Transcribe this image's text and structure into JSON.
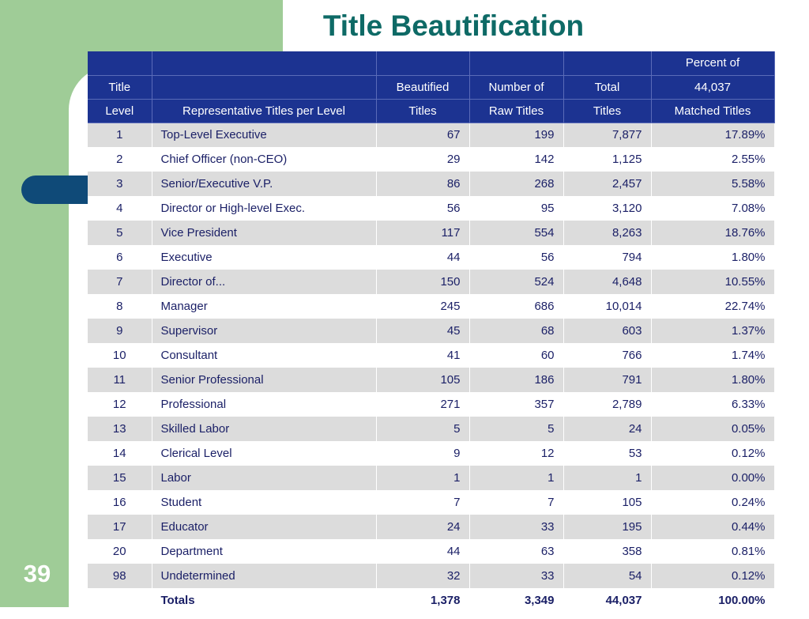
{
  "title": "Title Beautification",
  "slide_number": "39",
  "table": {
    "header_rows": [
      [
        "",
        "",
        "",
        "",
        "",
        "Percent of"
      ],
      [
        "Title",
        "",
        "Beautified",
        "Number of",
        "Total",
        "44,037"
      ],
      [
        "Level",
        "Representative Titles per Level",
        "Titles",
        "Raw Titles",
        "Titles",
        "Matched Titles"
      ]
    ],
    "rows": [
      [
        "1",
        "Top-Level Executive",
        "67",
        "199",
        "7,877",
        "17.89%"
      ],
      [
        "2",
        "Chief Officer (non-CEO)",
        "29",
        "142",
        "1,125",
        "2.55%"
      ],
      [
        "3",
        "Senior/Executive V.P.",
        "86",
        "268",
        "2,457",
        "5.58%"
      ],
      [
        "4",
        "Director or High-level Exec.",
        "56",
        "95",
        "3,120",
        "7.08%"
      ],
      [
        "5",
        "Vice President",
        "117",
        "554",
        "8,263",
        "18.76%"
      ],
      [
        "6",
        "Executive",
        "44",
        "56",
        "794",
        "1.80%"
      ],
      [
        "7",
        "Director of...",
        "150",
        "524",
        "4,648",
        "10.55%"
      ],
      [
        "8",
        "Manager",
        "245",
        "686",
        "10,014",
        "22.74%"
      ],
      [
        "9",
        "Supervisor",
        "45",
        "68",
        "603",
        "1.37%"
      ],
      [
        "10",
        "Consultant",
        "41",
        "60",
        "766",
        "1.74%"
      ],
      [
        "11",
        "Senior Professional",
        "105",
        "186",
        "791",
        "1.80%"
      ],
      [
        "12",
        "Professional",
        "271",
        "357",
        "2,789",
        "6.33%"
      ],
      [
        "13",
        "Skilled Labor",
        "5",
        "5",
        "24",
        "0.05%"
      ],
      [
        "14",
        "Clerical Level",
        "9",
        "12",
        "53",
        "0.12%"
      ],
      [
        "15",
        "Labor",
        "1",
        "1",
        "1",
        "0.00%"
      ],
      [
        "16",
        "Student",
        "7",
        "7",
        "105",
        "0.24%"
      ],
      [
        "17",
        "Educator",
        "24",
        "33",
        "195",
        "0.44%"
      ],
      [
        "20",
        "Department",
        "44",
        "63",
        "358",
        "0.81%"
      ],
      [
        "98",
        "Undetermined",
        "32",
        "33",
        "54",
        "0.12%"
      ]
    ],
    "totals": [
      "",
      "Totals",
      "1,378",
      "3,349",
      "44,037",
      "100.00%"
    ]
  },
  "colors": {
    "side_band": "#9fcc97",
    "accent_bar": "#0f4a78",
    "title_text": "#0e6a66",
    "header_bg": "#1c3391",
    "body_text": "#1a1f66"
  }
}
